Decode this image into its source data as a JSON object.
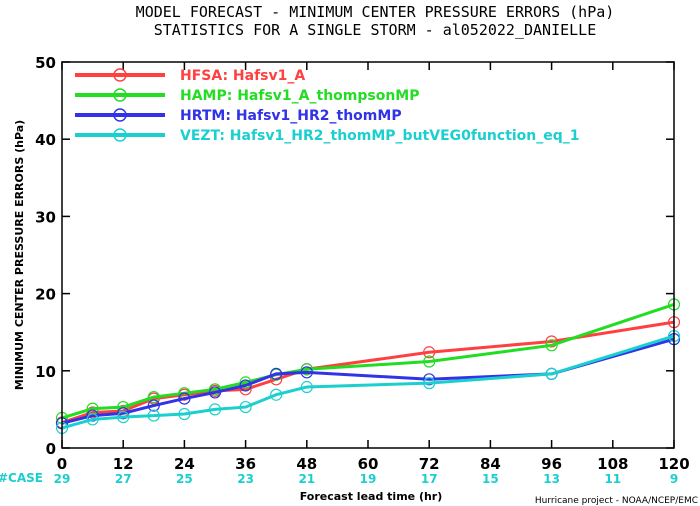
{
  "titles": {
    "line1": "MODEL FORECAST - MINIMUM CENTER PRESSURE ERRORS (hPa)",
    "line2": "STATISTICS FOR A SINGLE STORM - al052022_DANIELLE"
  },
  "credit": "Hurricane project - NOAA/NCEP/EMC",
  "case_label": "#CASE",
  "chart_data": {
    "type": "line",
    "xlabel": "Forecast lead time (hr)",
    "ylabel": "MINIMUM CENTER PRESSURE ERRORS (hPa)",
    "xlim": [
      0,
      120
    ],
    "ylim": [
      0,
      50
    ],
    "xticks": [
      0,
      12,
      24,
      36,
      48,
      60,
      72,
      84,
      96,
      108,
      120
    ],
    "yticks": [
      0,
      10,
      20,
      30,
      40,
      50
    ],
    "cases": [
      29,
      27,
      25,
      23,
      21,
      19,
      17,
      15,
      13,
      11,
      9
    ],
    "grid": false,
    "legend_position": "top-left",
    "series": [
      {
        "name": "HFSA: Hafsv1_A",
        "color": "#ff4040",
        "x": [
          0,
          6,
          12,
          18,
          24,
          30,
          36,
          42,
          48,
          72,
          96,
          120
        ],
        "y": [
          3.3,
          4.6,
          4.8,
          6.4,
          6.9,
          7.4,
          7.6,
          8.9,
          10.2,
          12.4,
          13.8,
          16.3
        ]
      },
      {
        "name": "HAMP: Hafsv1_A_thompsonMP",
        "color": "#22dd22",
        "x": [
          0,
          6,
          12,
          18,
          24,
          30,
          36,
          42,
          48,
          72,
          96,
          120
        ],
        "y": [
          3.9,
          5.1,
          5.3,
          6.6,
          7.1,
          7.6,
          8.5,
          9.5,
          10.2,
          11.2,
          13.3,
          18.6
        ]
      },
      {
        "name": "HRTM: Hafsv1_HR2_thomMP",
        "color": "#3232e6",
        "x": [
          0,
          6,
          12,
          18,
          24,
          30,
          36,
          42,
          48,
          72,
          96,
          120
        ],
        "y": [
          3.2,
          4.2,
          4.5,
          5.5,
          6.4,
          7.2,
          8.1,
          9.6,
          9.8,
          8.9,
          9.6,
          14.1
        ]
      },
      {
        "name": "VEZT: Hafsv1_HR2_thomMP_butVEG0function_eq_1",
        "color": "#1ccfcf",
        "x": [
          0,
          6,
          12,
          18,
          24,
          30,
          36,
          42,
          48,
          72,
          96,
          120
        ],
        "y": [
          2.6,
          3.7,
          4.0,
          4.2,
          4.4,
          5.0,
          5.3,
          6.9,
          7.9,
          8.4,
          9.6,
          14.5
        ]
      }
    ]
  }
}
